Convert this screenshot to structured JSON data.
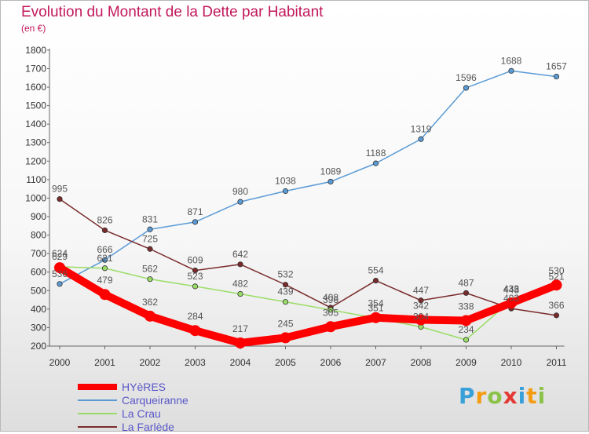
{
  "title": "Evolution du Montant de la Dette par Habitant",
  "subtitle": "(en €)",
  "brand": {
    "letters": [
      {
        "ch": "P",
        "color": "#3aa0d8"
      },
      {
        "ch": "r",
        "color": "#f39c12"
      },
      {
        "ch": "o",
        "color": "#8bc34a"
      },
      {
        "ch": "x",
        "color": "#e53935"
      },
      {
        "ch": "i",
        "color": "#3aa0d8"
      },
      {
        "ch": "t",
        "color": "#f39c12"
      },
      {
        "ch": "i",
        "color": "#8bc34a"
      }
    ]
  },
  "chart_data": {
    "type": "line",
    "categories": [
      "2000",
      "2001",
      "2002",
      "2003",
      "2004",
      "2005",
      "2006",
      "2007",
      "2008",
      "2009",
      "2010",
      "2011"
    ],
    "ylim": [
      200,
      1800
    ],
    "yticks": [
      200,
      300,
      400,
      500,
      600,
      700,
      800,
      900,
      1000,
      1100,
      1200,
      1300,
      1400,
      1500,
      1600,
      1700,
      1800
    ],
    "grid": false,
    "legend_position": "bottom-left",
    "series": [
      {
        "name": "HYèRES",
        "color": "#ff0000",
        "values": [
          624,
          479,
          362,
          284,
          217,
          245,
          305,
          354,
          342,
          338,
          433,
          530
        ],
        "emphasis": true
      },
      {
        "name": "Carqueiranne",
        "color": "#5b9bd5",
        "values": [
          536,
          666,
          831,
          871,
          980,
          1038,
          1089,
          1188,
          1319,
          1596,
          1688,
          1657
        ]
      },
      {
        "name": "La Crau",
        "color": "#99dd66",
        "values": [
          629,
          621,
          562,
          523,
          482,
          439,
          396,
          351,
          304,
          234,
          448,
          521
        ]
      },
      {
        "name": "La Farlède",
        "color": "#7a2a2a",
        "values": [
          995,
          826,
          725,
          609,
          642,
          532,
          408,
          554,
          447,
          487,
          403,
          366
        ]
      }
    ]
  }
}
